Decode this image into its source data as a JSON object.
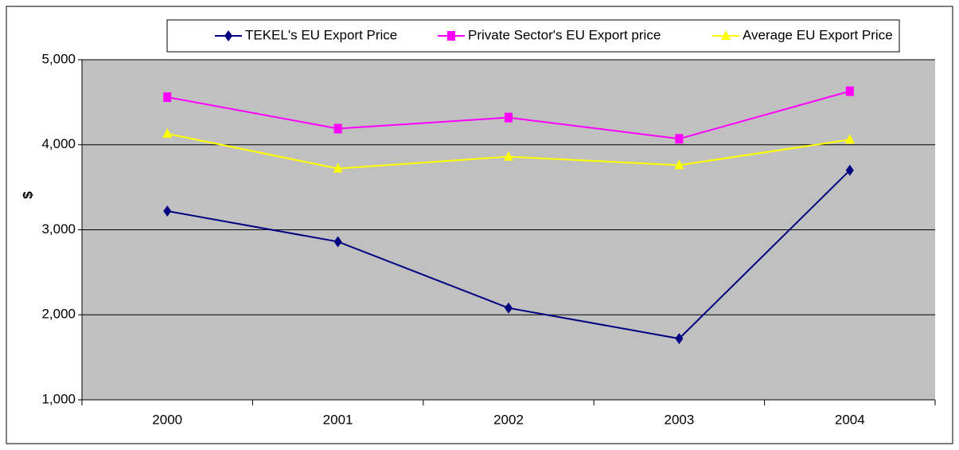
{
  "chart_data": {
    "type": "line",
    "y_label": "$",
    "categories": [
      "2000",
      "2001",
      "2002",
      "2003",
      "2004"
    ],
    "series": [
      {
        "name": "TEKEL's EU Export Price",
        "color": "#000080",
        "marker": "diamond",
        "values": [
          3220,
          2860,
          2080,
          1720,
          3700
        ]
      },
      {
        "name": "Private Sector's EU Export price",
        "color": "#ff00ff",
        "marker": "square",
        "values": [
          4560,
          4190,
          4320,
          4070,
          4630
        ]
      },
      {
        "name": "Average EU Export Price",
        "color": "#ffff00",
        "marker": "triangle",
        "values": [
          4130,
          3720,
          3860,
          3760,
          4060
        ]
      }
    ],
    "ylim": [
      1000,
      5000
    ],
    "yticks": [
      {
        "value": 1000,
        "label": "1,000"
      },
      {
        "value": 2000,
        "label": "2,000"
      },
      {
        "value": 3000,
        "label": "3,000"
      },
      {
        "value": 4000,
        "label": "4,000"
      },
      {
        "value": 5000,
        "label": "5,000"
      }
    ],
    "grid": true,
    "background": "#c0c0c0"
  }
}
